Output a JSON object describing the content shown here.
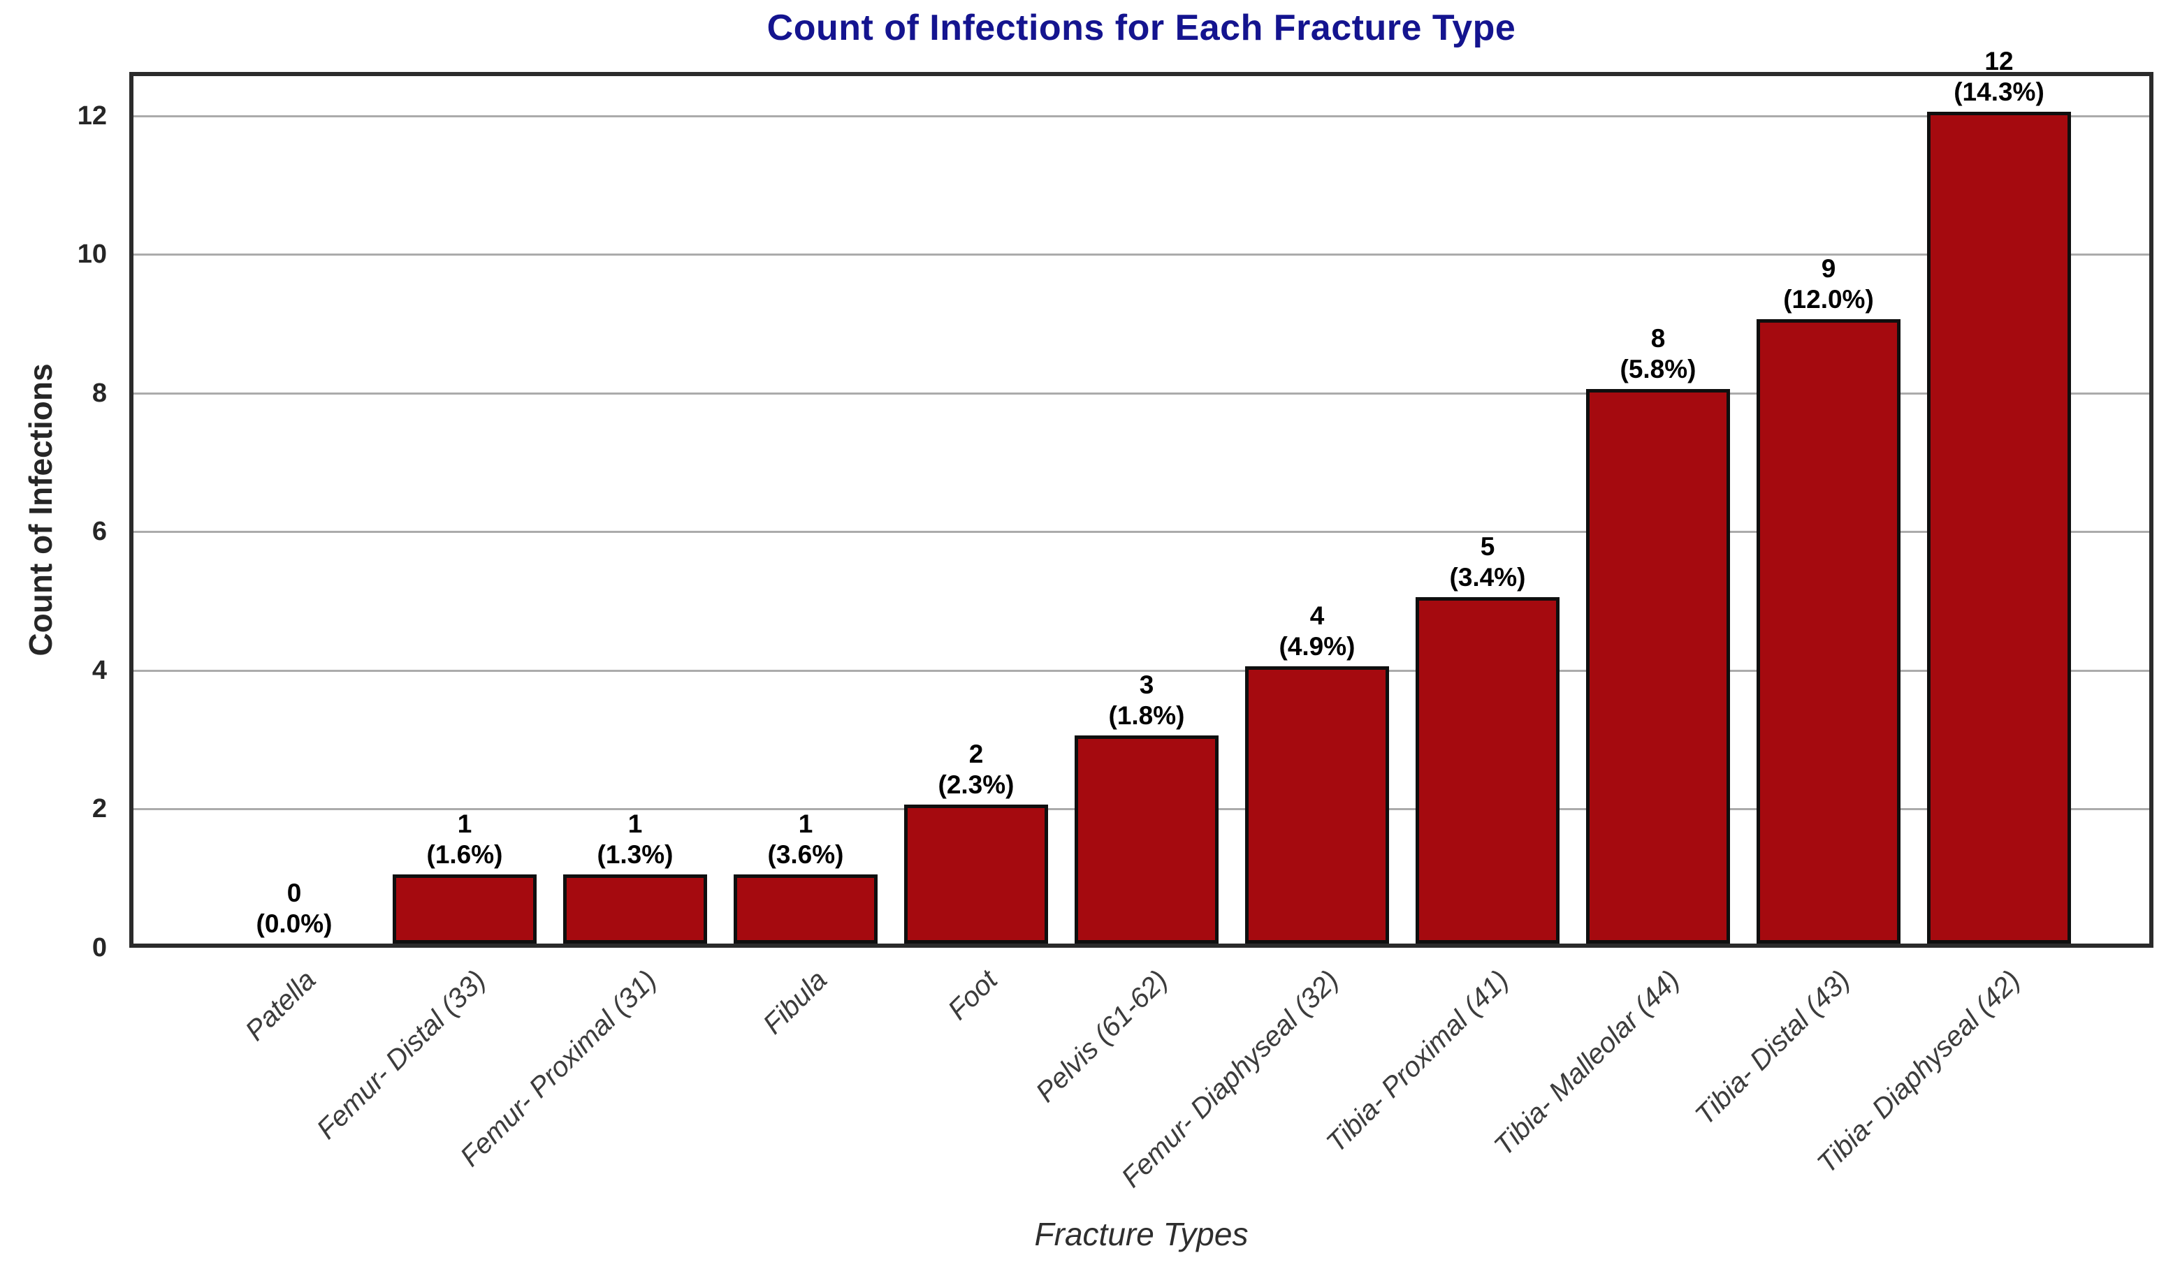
{
  "title": "Count of Infections for Each Fracture Type",
  "chart_data": {
    "type": "bar",
    "title": "Count of Infections for Each Fracture Type",
    "xlabel": "Fracture Types",
    "ylabel": "Count of Infections",
    "categories": [
      "Patella",
      "Femur- Distal (33)",
      "Femur- Proximal (31)",
      "Fibula",
      "Foot",
      "Pelvis (61-62)",
      "Femur- Diaphyseal (32)",
      "Tibia- Proximal (41)",
      "Tibia- Malleolar (44)",
      "Tibia- Distal (43)",
      "Tibia- Diaphyseal (42)"
    ],
    "values": [
      0,
      1,
      1,
      1,
      2,
      3,
      4,
      5,
      8,
      9,
      12
    ],
    "bar_labels": [
      {
        "count": "0",
        "percent": "(0.0%)"
      },
      {
        "count": "1",
        "percent": "(1.6%)"
      },
      {
        "count": "1",
        "percent": "(1.3%)"
      },
      {
        "count": "1",
        "percent": "(3.6%)"
      },
      {
        "count": "2",
        "percent": "(2.3%)"
      },
      {
        "count": "3",
        "percent": "(1.8%)"
      },
      {
        "count": "4",
        "percent": "(4.9%)"
      },
      {
        "count": "5",
        "percent": "(3.4%)"
      },
      {
        "count": "8",
        "percent": "(5.8%)"
      },
      {
        "count": "9",
        "percent": "(12.0%)"
      },
      {
        "count": "12",
        "percent": "(14.3%)"
      }
    ],
    "yticks": [
      "0",
      "2",
      "4",
      "6",
      "8",
      "10",
      "12"
    ],
    "ylim": [
      0,
      12.63
    ],
    "grid": "horizontal",
    "legend": "none",
    "colors": {
      "bar_fill": "#A50A0F",
      "bar_edge": "#0f0f0f",
      "title": "#14148F",
      "gridline": "#ababab",
      "frame": "#2b2b2b",
      "tick_text": "#262626",
      "xtick_text": "#3c3c3c"
    }
  }
}
